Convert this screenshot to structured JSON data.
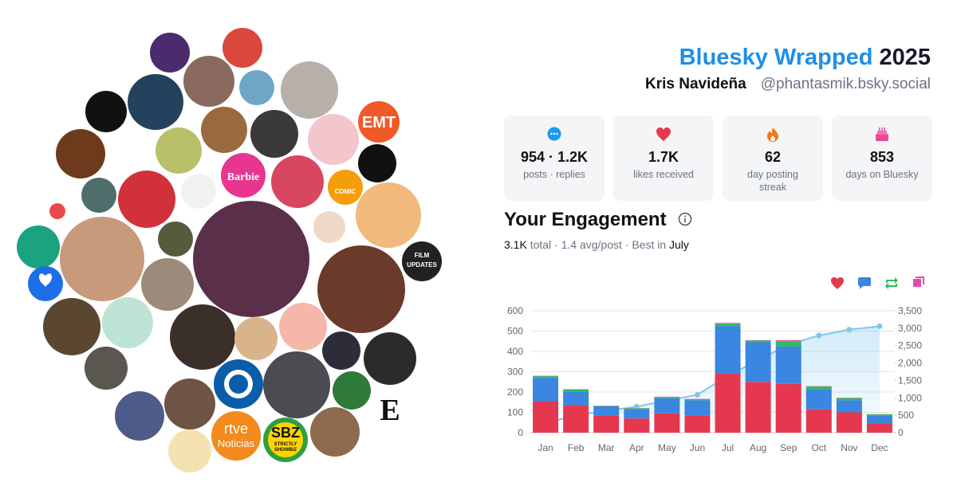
{
  "header": {
    "title": "Bluesky Wrapped",
    "year": "2025",
    "name": "Kris Navideña",
    "handle": "@phantasmik.bsky.social"
  },
  "stats": [
    {
      "value": "954 · 1.2K",
      "label": "posts · replies"
    },
    {
      "value": "1.7K",
      "label": "likes received"
    },
    {
      "value": "62",
      "label": "day posting streak"
    },
    {
      "value": "853",
      "label": "days on Bluesky"
    }
  ],
  "engagement": {
    "title": "Your Engagement",
    "total": "3.1K",
    "summary": "total · 1.4 avg/post · Best in",
    "best": "July"
  },
  "avatar_labels": [
    "EMT",
    "COMIC",
    "Barbie",
    "FILM",
    "UPDATES",
    "rtve",
    "Noticias",
    "SBZ",
    "STRICTLY",
    "SHOWBIZ",
    "E"
  ],
  "chart_data": {
    "type": "bar",
    "stacked": true,
    "categories": [
      "Jan",
      "Feb",
      "Mar",
      "Apr",
      "May",
      "Jun",
      "Jul",
      "Aug",
      "Sep",
      "Oct",
      "Nov",
      "Dec"
    ],
    "series": [
      {
        "color": "#e5384f",
        "values": [
          155,
          135,
          85,
          70,
          95,
          85,
          290,
          250,
          240,
          115,
          100,
          45
        ]
      },
      {
        "color": "#3a86e0",
        "values": [
          115,
          65,
          45,
          45,
          75,
          75,
          235,
          195,
          185,
          100,
          60,
          40
        ]
      },
      {
        "color": "#2dbe5a",
        "values": [
          8,
          12,
          2,
          5,
          5,
          5,
          12,
          8,
          25,
          12,
          10,
          5
        ]
      },
      {
        "color": "#e84aa8",
        "values": [
          2,
          2,
          1,
          1,
          2,
          1,
          3,
          2,
          5,
          2,
          2,
          1
        ]
      },
      {
        "type": "line",
        "axis": "y2",
        "color": "#7fc6ee",
        "values": [
          280,
          497,
          627,
          747,
          922,
          1087,
          1627,
          2080,
          2535,
          2790,
          2960,
          3055
        ]
      }
    ],
    "ylim": [
      0,
      600
    ],
    "yticks": [
      0,
      100,
      200,
      300,
      400,
      500,
      600
    ],
    "y2lim": [
      0,
      3500
    ],
    "y2ticks": [
      0,
      500,
      {
        "value": 1000,
        "label": "1,000"
      },
      {
        "value": 1500,
        "label": "1,500"
      },
      {
        "value": 2000,
        "label": "2,000"
      },
      {
        "value": 2500,
        "label": "2,500"
      },
      {
        "value": 3000,
        "label": "3,000"
      },
      {
        "value": 3500,
        "label": "3,500"
      }
    ],
    "grid": true
  }
}
